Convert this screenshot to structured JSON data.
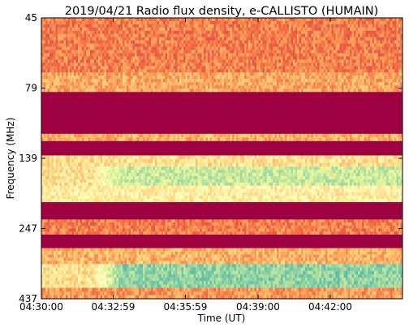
{
  "chart_data": {
    "type": "heatmap",
    "title": "2019/04/21  Radio flux density, e-CALLISTO (HUMAIN)",
    "xlabel": "Time (UT)",
    "ylabel": "Frequency (MHz)",
    "x_ticks": [
      "04:30:00",
      "04:32:59",
      "04:35:59",
      "04:39:00",
      "04:42:00"
    ],
    "y_ticks": [
      "45",
      "79",
      "139",
      "247",
      "437"
    ],
    "x_range": [
      "04:30:00",
      "04:45:00"
    ],
    "y_range_mhz": [
      45,
      437
    ],
    "y_inverted": true,
    "colormap": "Spectral",
    "colormap_stops": [
      "#9e0142",
      "#d53e4f",
      "#f46d43",
      "#fdae61",
      "#fee08b",
      "#ffffbf",
      "#e6f598",
      "#abdda4",
      "#66c2a5",
      "#3288bd"
    ],
    "frequency_bands": [
      {
        "from_mhz": 45,
        "to_mhz": 70,
        "level": 0.25,
        "description": "speckled noise"
      },
      {
        "from_mhz": 70,
        "to_mhz": 82,
        "level": 0.33
      },
      {
        "from_mhz": 82,
        "to_mhz": 115,
        "level": 0.0
      },
      {
        "from_mhz": 115,
        "to_mhz": 122,
        "level": 0.35
      },
      {
        "from_mhz": 122,
        "to_mhz": 137,
        "level": 0.0
      },
      {
        "from_mhz": 137,
        "to_mhz": 150,
        "level": 0.45
      },
      {
        "from_mhz": 150,
        "to_mhz": 175,
        "level": 0.72
      },
      {
        "from_mhz": 175,
        "to_mhz": 200,
        "level": 0.5
      },
      {
        "from_mhz": 200,
        "to_mhz": 230,
        "level": 0.0
      },
      {
        "from_mhz": 230,
        "to_mhz": 260,
        "level": 0.25
      },
      {
        "from_mhz": 260,
        "to_mhz": 290,
        "level": 0.0
      },
      {
        "from_mhz": 290,
        "to_mhz": 330,
        "level": 0.35
      },
      {
        "from_mhz": 330,
        "to_mhz": 400,
        "level": 0.82
      },
      {
        "from_mhz": 400,
        "to_mhz": 437,
        "level": 0.3
      }
    ],
    "onset_time": "04:32:59"
  }
}
